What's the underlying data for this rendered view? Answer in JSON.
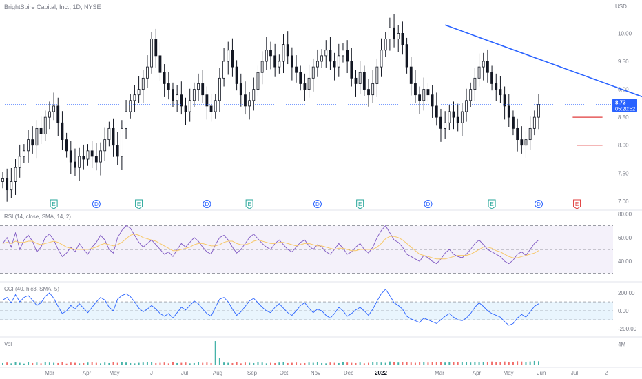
{
  "header": {
    "symbol_title": "BrightSpire Capital, Inc., 1D, NYSE",
    "currency": "USD"
  },
  "price_badge": {
    "price": "8.73",
    "countdown": "05:20:52",
    "color": "#2962ff"
  },
  "x_axis": {
    "labels": [
      "Mar",
      "Apr",
      "May",
      "J",
      "Jul",
      "Aug",
      "Sep",
      "Oct",
      "Nov",
      "Dec",
      "2022",
      "Mar",
      "Apr",
      "May",
      "Jun",
      "Jul",
      "2"
    ]
  },
  "chart_data": [
    {
      "type": "candlestick",
      "panel": "price",
      "yticks": [
        "10.00",
        "9.50",
        "9.00",
        "8.50",
        "8.00",
        "7.50",
        "7.00"
      ],
      "ylim": [
        6.9,
        10.35
      ],
      "last_price": 8.73,
      "close_series": [
        7.4,
        7.2,
        7.35,
        7.6,
        7.8,
        7.9,
        8.1,
        8.0,
        8.3,
        8.2,
        8.5,
        8.6,
        8.7,
        8.4,
        8.1,
        7.9,
        7.7,
        7.6,
        7.8,
        7.75,
        7.9,
        7.8,
        7.7,
        7.9,
        8.1,
        8.3,
        8.0,
        7.8,
        8.3,
        8.6,
        8.8,
        8.9,
        9.0,
        9.2,
        9.4,
        9.9,
        9.6,
        9.3,
        9.1,
        9.0,
        8.8,
        8.9,
        8.7,
        8.6,
        8.8,
        9.0,
        9.1,
        8.9,
        8.7,
        8.6,
        8.8,
        9.2,
        9.5,
        9.7,
        9.4,
        9.1,
        8.9,
        8.7,
        8.8,
        9.0,
        9.3,
        9.5,
        9.7,
        9.6,
        9.4,
        9.5,
        9.8,
        9.6,
        9.4,
        9.3,
        9.1,
        9.0,
        9.2,
        9.4,
        9.5,
        9.6,
        9.7,
        9.5,
        9.4,
        9.6,
        9.7,
        9.5,
        9.2,
        9.1,
        9.3,
        9.0,
        8.9,
        9.1,
        9.4,
        9.7,
        9.9,
        10.1,
        9.9,
        10.0,
        9.8,
        9.4,
        9.1,
        8.9,
        8.8,
        9.0,
        8.9,
        8.7,
        8.5,
        8.3,
        8.4,
        8.6,
        8.5,
        8.4,
        8.6,
        8.8,
        9.0,
        9.2,
        9.4,
        9.5,
        9.3,
        9.1,
        9.0,
        8.9,
        8.7,
        8.5,
        8.3,
        8.1,
        8.0,
        8.1,
        8.3,
        8.5,
        8.73
      ],
      "annotations": [
        {
          "type": "trendline",
          "from": [
            104,
            10.15
          ],
          "to": [
            160,
            8.6
          ],
          "color": "#2962ff"
        },
        {
          "type": "hline",
          "y": 8.5,
          "x_from": 134,
          "x_to": 141,
          "color": "#e03b3b"
        },
        {
          "type": "hline",
          "y": 8.0,
          "x_from": 135,
          "x_to": 141,
          "color": "#e03b3b"
        }
      ],
      "events": [
        {
          "label": "E",
          "x": 12,
          "kind": "earnings"
        },
        {
          "label": "D",
          "x": 22,
          "kind": "dividend"
        },
        {
          "label": "E",
          "x": 32,
          "kind": "earnings"
        },
        {
          "label": "D",
          "x": 48,
          "kind": "dividend"
        },
        {
          "label": "E",
          "x": 58,
          "kind": "earnings"
        },
        {
          "label": "D",
          "x": 74,
          "kind": "dividend"
        },
        {
          "label": "E",
          "x": 84,
          "kind": "earnings"
        },
        {
          "label": "D",
          "x": 100,
          "kind": "dividend"
        },
        {
          "label": "E",
          "x": 115,
          "kind": "earnings"
        },
        {
          "label": "D",
          "x": 126,
          "kind": "dividend"
        },
        {
          "label": "E",
          "x": 135,
          "kind": "earnings-upcoming"
        }
      ]
    },
    {
      "type": "line",
      "panel": "rsi",
      "title": "RSI (14, close, SMA, 14, 2)",
      "yticks": [
        "80.00",
        "60.00",
        "40.00"
      ],
      "ylim": [
        25,
        82
      ],
      "bands": [
        70,
        50,
        30
      ],
      "series": [
        {
          "values": [
            55,
            60,
            52,
            64,
            50,
            58,
            62,
            57,
            48,
            52,
            60,
            63,
            58,
            50,
            44,
            47,
            52,
            48,
            55,
            50,
            46,
            52,
            56,
            62,
            58,
            50,
            47,
            60,
            66,
            70,
            68,
            62,
            56,
            52,
            55,
            58,
            54,
            50,
            46,
            48,
            44,
            50,
            55,
            52,
            56,
            60,
            57,
            52,
            48,
            46,
            54,
            60,
            62,
            58,
            52,
            47,
            50,
            55,
            60,
            63,
            59,
            55,
            52,
            50,
            55,
            58,
            54,
            50,
            48,
            52,
            56,
            58,
            53,
            50,
            54,
            52,
            48,
            46,
            50,
            55,
            51,
            46,
            48,
            52,
            55,
            50,
            47,
            52,
            60,
            66,
            70,
            64,
            58,
            56,
            52,
            46,
            44,
            42,
            40,
            45,
            43,
            40,
            38,
            42,
            47,
            50,
            46,
            44,
            43,
            46,
            50,
            55,
            58,
            54,
            50,
            48,
            46,
            44,
            40,
            38,
            41,
            46,
            48,
            45,
            50,
            55,
            58
          ]
        },
        {
          "values": [
            55,
            56,
            55,
            57,
            56,
            56,
            57,
            57,
            55,
            54,
            55,
            56,
            57,
            56,
            54,
            52,
            51,
            50,
            50,
            50,
            50,
            51,
            52,
            54,
            55,
            54,
            53,
            54,
            56,
            59,
            62,
            63,
            62,
            60,
            59,
            58,
            57,
            55,
            53,
            51,
            49,
            49,
            50,
            51,
            52,
            54,
            55,
            55,
            54,
            53,
            53,
            54,
            56,
            57,
            57,
            55,
            54,
            54,
            55,
            57,
            58,
            57,
            56,
            55,
            55,
            56,
            56,
            55,
            54,
            53,
            54,
            55,
            55,
            54,
            53,
            53,
            52,
            51,
            50,
            51,
            51,
            50,
            49,
            49,
            50,
            50,
            50,
            50,
            52,
            55,
            59,
            61,
            61,
            60,
            58,
            55,
            52,
            49,
            46,
            45,
            44,
            43,
            42,
            42,
            42,
            43,
            44,
            45,
            45,
            45,
            46,
            48,
            50,
            52,
            52,
            51,
            49,
            48,
            46,
            44,
            43,
            43,
            44,
            45,
            46,
            47,
            49
          ]
        }
      ]
    },
    {
      "type": "line",
      "panel": "cci",
      "title": "CCI (40, hlc3, SMA, 5)",
      "yticks": [
        "200.00",
        "0.00",
        "-200.00"
      ],
      "ylim": [
        -260,
        300
      ],
      "bands": [
        100,
        0,
        -100
      ],
      "series": [
        {
          "values": [
            120,
            150,
            90,
            180,
            100,
            150,
            170,
            120,
            60,
            90,
            160,
            200,
            140,
            50,
            -30,
            0,
            60,
            20,
            80,
            30,
            -20,
            40,
            100,
            150,
            120,
            40,
            0,
            130,
            170,
            190,
            160,
            100,
            30,
            -10,
            20,
            60,
            20,
            -30,
            -60,
            -30,
            -80,
            -20,
            40,
            10,
            60,
            110,
            80,
            20,
            -30,
            -60,
            40,
            130,
            150,
            100,
            20,
            -50,
            -10,
            50,
            110,
            140,
            90,
            40,
            0,
            -20,
            40,
            80,
            30,
            -20,
            -50,
            0,
            60,
            90,
            30,
            -20,
            20,
            0,
            -50,
            -80,
            -30,
            40,
            0,
            -60,
            -30,
            10,
            40,
            0,
            -50,
            20,
            110,
            190,
            240,
            170,
            90,
            60,
            20,
            -60,
            -90,
            -110,
            -130,
            -80,
            -100,
            -120,
            -140,
            -100,
            -60,
            -30,
            -70,
            -100,
            -110,
            -80,
            -30,
            40,
            90,
            50,
            0,
            -30,
            -50,
            -70,
            -120,
            -160,
            -140,
            -80,
            -40,
            -70,
            -10,
            50,
            80
          ]
        }
      ]
    },
    {
      "type": "bar",
      "panel": "volume",
      "title": "Vol",
      "yticks": [
        "4M"
      ],
      "ylim": [
        0,
        5
      ],
      "series": [
        {
          "values": [
            0.4,
            0.5,
            0.35,
            0.6,
            0.45,
            0.3,
            0.55,
            0.4,
            0.5,
            0.35,
            0.6,
            0.5,
            0.45,
            0.4,
            0.55,
            0.3,
            0.5,
            0.45,
            0.35,
            0.4,
            0.5,
            0.6,
            0.45,
            0.35,
            0.5,
            0.4,
            0.55,
            0.45,
            0.6,
            0.5,
            0.4,
            0.35,
            0.45,
            0.5,
            0.55,
            0.6,
            0.4,
            0.45,
            0.5,
            0.35,
            0.55,
            0.4,
            0.45,
            0.5,
            0.35,
            0.4,
            0.55,
            0.45,
            0.5,
            0.4,
            4.6,
            1.4,
            0.5,
            0.45,
            0.4,
            0.55,
            0.35,
            0.5,
            0.45,
            0.4,
            0.55,
            0.5,
            0.35,
            0.45,
            0.4,
            0.5,
            0.55,
            0.4,
            0.45,
            0.5,
            0.35,
            0.4,
            0.5,
            0.45,
            0.55,
            0.4,
            0.35,
            0.5,
            0.45,
            0.4,
            0.55,
            0.5,
            0.45,
            0.4,
            0.5,
            0.35,
            0.45,
            0.55,
            0.6,
            0.5,
            0.45,
            0.7,
            0.6,
            0.5,
            0.55,
            0.6,
            0.5,
            0.45,
            0.55,
            0.6,
            0.5,
            0.55,
            0.65,
            0.6,
            0.5,
            0.55,
            0.6,
            0.65,
            0.55,
            0.6,
            0.5,
            0.65,
            0.6,
            0.55,
            0.65,
            0.7,
            0.6,
            0.55,
            0.7,
            0.65,
            0.6,
            0.75,
            0.7,
            0.65,
            0.7,
            0.8,
            0.75
          ]
        }
      ]
    }
  ]
}
